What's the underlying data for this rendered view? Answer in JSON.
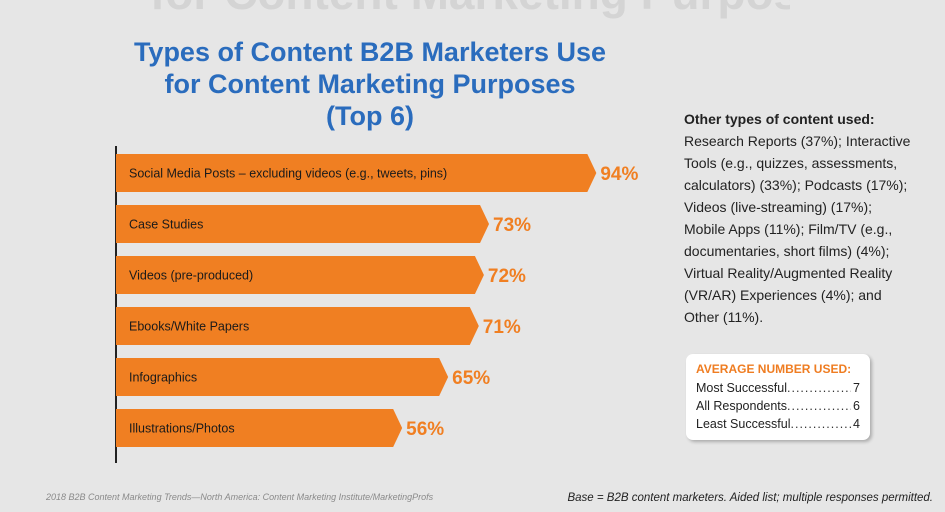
{
  "header": {
    "cut_off_heading": "for Content Marketing Purposes",
    "title_lines": [
      "Types of Content B2B Marketers Use",
      "for Content Marketing Purposes",
      "(Top 6)"
    ]
  },
  "chart_data": {
    "type": "bar",
    "orientation": "horizontal",
    "title": "Types of Content B2B Marketers Use for Content Marketing Purposes (Top 6)",
    "categories": [
      "Social Media Posts – excluding videos (e.g., tweets, pins)",
      "Case Studies",
      "Videos (pre-produced)",
      "Ebooks/White Papers",
      "Infographics",
      "Illustrations/Photos"
    ],
    "values": [
      94,
      73,
      72,
      71,
      65,
      56
    ],
    "data_labels": [
      "94%",
      "73%",
      "72%",
      "71%",
      "65%",
      "56%"
    ],
    "xlim": [
      0,
      100
    ],
    "grid": false,
    "legend": "none",
    "bar_color": "#f07f22",
    "label_color": "#f07f22"
  },
  "other_types": {
    "heading": "Other types of content used:",
    "lines": [
      "Research Reports (37%); Interactive",
      "Tools (e.g., quizzes, assessments,",
      "calculators) (33%); Podcasts (17%);",
      "Videos (live-streaming) (17%);",
      "Mobile Apps (11%); Film/TV (e.g.,",
      "documentaries, short films) (4%);",
      "Virtual Reality/Augmented Reality",
      "(VR/AR) Experiences (4%); and",
      "Other (11%)."
    ]
  },
  "average": {
    "title": "AVERAGE NUMBER USED:",
    "rows": [
      {
        "label": "Most Successful",
        "value": "7"
      },
      {
        "label": "All Respondents",
        "value": "6"
      },
      {
        "label": "Least Successful",
        "value": "4"
      }
    ]
  },
  "footer": {
    "source": "2018 B2B Content Marketing Trends—North America: Content Marketing Institute/MarketingProfs",
    "base": "Base = B2B content marketers. Aided list; multiple responses permitted."
  },
  "colors": {
    "title": "#2a6cbd",
    "accent": "#f07f22",
    "axis": "#222222"
  }
}
